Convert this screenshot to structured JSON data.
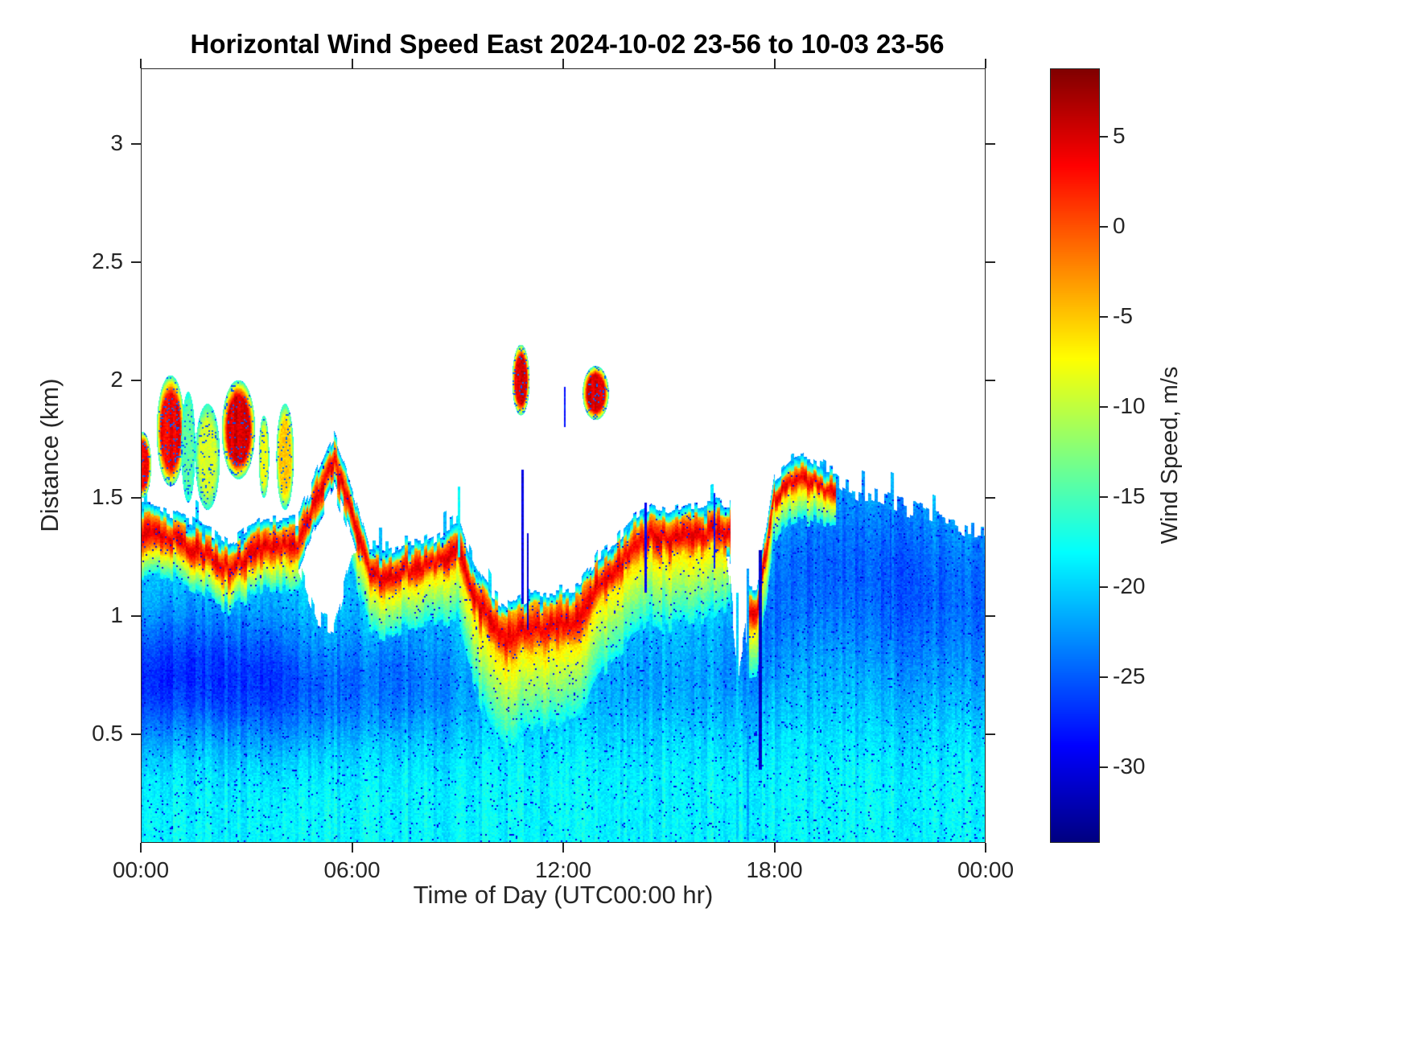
{
  "style": {
    "background": "#ffffff",
    "axis_color": "#262626",
    "title_color": "#000000"
  },
  "chart_data": {
    "type": "heatmap",
    "title": "Horizontal Wind Speed East 2024-10-02 23-56 to 10-03 23-56",
    "xlabel": "Time of Day (UTC00:00 hr)",
    "ylabel": "Distance (km)",
    "x_unit": "hours UTC",
    "x_range": [
      0,
      24
    ],
    "x_ticks": [
      {
        "value": 0,
        "label": "00:00"
      },
      {
        "value": 6,
        "label": "06:00"
      },
      {
        "value": 12,
        "label": "12:00"
      },
      {
        "value": 18,
        "label": "18:00"
      },
      {
        "value": 24,
        "label": "00:00"
      }
    ],
    "y_range": [
      0.04,
      3.32
    ],
    "y_ticks": [
      {
        "value": 0.5,
        "label": "0.5"
      },
      {
        "value": 1,
        "label": "1"
      },
      {
        "value": 1.5,
        "label": "1.5"
      },
      {
        "value": 2,
        "label": "2"
      },
      {
        "value": 2.5,
        "label": "2.5"
      },
      {
        "value": 3,
        "label": "3"
      }
    ],
    "grid": false,
    "colorbar": {
      "label": "Wind Speed, m/s",
      "colormap": "jet",
      "min": -34.2,
      "max": 8.8,
      "ticks": [
        {
          "value": 5,
          "label": "5"
        },
        {
          "value": 0,
          "label": "0"
        },
        {
          "value": -5,
          "label": "-5"
        },
        {
          "value": -10,
          "label": "-10"
        },
        {
          "value": -15,
          "label": "-15"
        },
        {
          "value": -20,
          "label": "-20"
        },
        {
          "value": -25,
          "label": "-25"
        },
        {
          "value": -30,
          "label": "-30"
        }
      ]
    },
    "columns": {
      "t_start_hr": 0,
      "t_step_hr": 0.5,
      "background_value_ms": -18.3,
      "field_top_km": [
        1.45,
        1.45,
        1.42,
        1.4,
        1.35,
        1.28,
        1.35,
        1.4,
        1.35,
        1.2,
        1.0,
        0.95,
        1.25,
        1.28,
        1.28,
        1.3,
        1.3,
        1.35,
        1.4,
        1.22,
        1.05,
        1.0,
        1.08,
        1.06,
        1.06,
        1.08,
        1.25,
        1.3,
        1.4,
        1.45,
        1.42,
        1.45,
        1.45,
        1.48,
        0.7,
        1.12,
        1.58,
        1.65,
        1.65,
        1.62,
        1.55,
        1.52,
        1.5,
        1.47,
        1.45,
        1.42,
        1.4,
        1.37
      ],
      "jet_layer_center_km": [
        1.35,
        1.35,
        1.32,
        1.28,
        1.25,
        1.2,
        1.25,
        1.3,
        1.3,
        1.3,
        1.5,
        1.65,
        1.45,
        1.17,
        1.16,
        1.2,
        1.2,
        1.25,
        1.28,
        1.08,
        0.95,
        0.9,
        0.95,
        0.96,
        0.96,
        0.98,
        1.14,
        1.2,
        1.3,
        1.35,
        1.32,
        1.35,
        1.35,
        1.36,
        null,
        1.02,
        1.5,
        1.57,
        1.58,
        1.53,
        null,
        null,
        null,
        null,
        null,
        null,
        null,
        null
      ],
      "jet_layer_halfwidth_km": [
        0.07,
        0.07,
        0.07,
        0.07,
        0.07,
        0.07,
        0.07,
        0.07,
        0.07,
        0.07,
        0.07,
        0.07,
        0.07,
        0.07,
        0.07,
        0.07,
        0.07,
        0.07,
        0.07,
        0.08,
        0.1,
        0.1,
        0.1,
        0.1,
        0.1,
        0.1,
        0.08,
        0.08,
        0.08,
        0.08,
        0.08,
        0.08,
        0.08,
        0.08,
        0.07,
        0.06,
        0.05,
        0.05,
        0.05,
        0.05,
        0.05,
        0.05,
        0.05,
        0.05,
        0.05,
        0.05,
        0.05,
        0.05
      ],
      "jet_layer_peak_ms": 3.2,
      "subjet_gradient_depth_km": [
        0.1,
        0.1,
        0.1,
        0.1,
        0.1,
        0.1,
        0.1,
        0.1,
        0.12,
        0.12,
        0.1,
        0.08,
        0.15,
        0.18,
        0.18,
        0.18,
        0.18,
        0.2,
        0.22,
        0.3,
        0.35,
        0.35,
        0.32,
        0.32,
        0.32,
        0.3,
        0.3,
        0.3,
        0.28,
        0.28,
        0.28,
        0.28,
        0.28,
        0.25,
        0.2,
        0.2,
        0.12,
        0.12,
        0.12,
        0.1,
        0.08,
        0.08,
        0.08,
        0.08,
        0.08,
        0.08,
        0.08,
        0.08
      ],
      "midlevel_blue_amp": [
        0.85,
        0.9,
        0.9,
        0.85,
        0.85,
        0.8,
        0.8,
        0.85,
        0.8,
        0.7,
        0.6,
        0.55,
        0.5,
        0.5,
        0.5,
        0.5,
        0.45,
        0.35,
        0.3,
        0.2,
        0.15,
        0.15,
        0.15,
        0.15,
        0.15,
        0.15,
        0.15,
        0.15,
        0.2,
        0.2,
        0.2,
        0.2,
        0.2,
        0.25,
        0.4,
        0.4,
        0.5,
        0.55,
        0.55,
        0.55,
        0.6,
        0.6,
        0.6,
        0.6,
        0.6,
        0.6,
        0.55,
        0.55
      ],
      "midlevel_blue_center_km": [
        0.72,
        0.72,
        0.75,
        0.75,
        0.75,
        0.72,
        0.72,
        0.72,
        0.7,
        0.7,
        0.68,
        0.68,
        0.7,
        0.7,
        0.72,
        0.72,
        0.72,
        0.7,
        0.7,
        0.68,
        0.68,
        0.68,
        0.68,
        0.68,
        0.68,
        0.68,
        0.7,
        0.7,
        0.72,
        0.72,
        0.72,
        0.72,
        0.72,
        0.75,
        0.8,
        0.85,
        1.05,
        1.15,
        1.2,
        1.2,
        1.2,
        1.18,
        1.15,
        1.15,
        1.12,
        1.1,
        1.1,
        1.08
      ],
      "midlevel_blue_width_km": [
        0.2,
        0.2,
        0.2,
        0.2,
        0.2,
        0.2,
        0.2,
        0.2,
        0.2,
        0.2,
        0.18,
        0.18,
        0.18,
        0.18,
        0.18,
        0.18,
        0.18,
        0.18,
        0.18,
        0.18,
        0.15,
        0.15,
        0.15,
        0.15,
        0.15,
        0.15,
        0.15,
        0.15,
        0.15,
        0.15,
        0.15,
        0.15,
        0.15,
        0.18,
        0.2,
        0.22,
        0.25,
        0.28,
        0.28,
        0.28,
        0.3,
        0.3,
        0.3,
        0.3,
        0.3,
        0.28,
        0.28,
        0.28
      ]
    },
    "elevated_patches": [
      [
        -0.2,
        0.3,
        1.5,
        1.78,
        2
      ],
      [
        0.45,
        1.25,
        1.55,
        2.02,
        3
      ],
      [
        1.15,
        1.55,
        1.48,
        1.95,
        -14
      ],
      [
        1.55,
        2.25,
        1.45,
        1.9,
        -9
      ],
      [
        2.3,
        3.25,
        1.58,
        2.0,
        4
      ],
      [
        3.35,
        3.65,
        1.5,
        1.85,
        -8
      ],
      [
        3.85,
        4.35,
        1.45,
        1.9,
        -5
      ],
      [
        10.55,
        11.05,
        1.85,
        2.15,
        4
      ],
      [
        12.55,
        13.3,
        1.83,
        2.06,
        4
      ]
    ],
    "vertical_streaks": [
      [
        9.05,
        1.25,
        1.55,
        -18,
        0.07
      ],
      [
        10.85,
        1.05,
        1.62,
        -30,
        0.07
      ],
      [
        11.0,
        0.95,
        1.35,
        -31,
        0.05
      ],
      [
        12.05,
        1.8,
        1.97,
        -28,
        0.05
      ],
      [
        14.35,
        1.1,
        1.48,
        -29,
        0.06
      ],
      [
        16.3,
        1.2,
        1.52,
        -28,
        0.05
      ],
      [
        16.95,
        0.05,
        1.1,
        -20,
        0.08
      ],
      [
        17.25,
        0.05,
        1.2,
        -22,
        0.06
      ],
      [
        17.6,
        0.35,
        1.28,
        -31,
        0.08
      ],
      [
        21.3,
        0.9,
        1.45,
        -26,
        0.06
      ],
      [
        22.2,
        0.9,
        1.42,
        -25,
        0.06
      ]
    ]
  }
}
